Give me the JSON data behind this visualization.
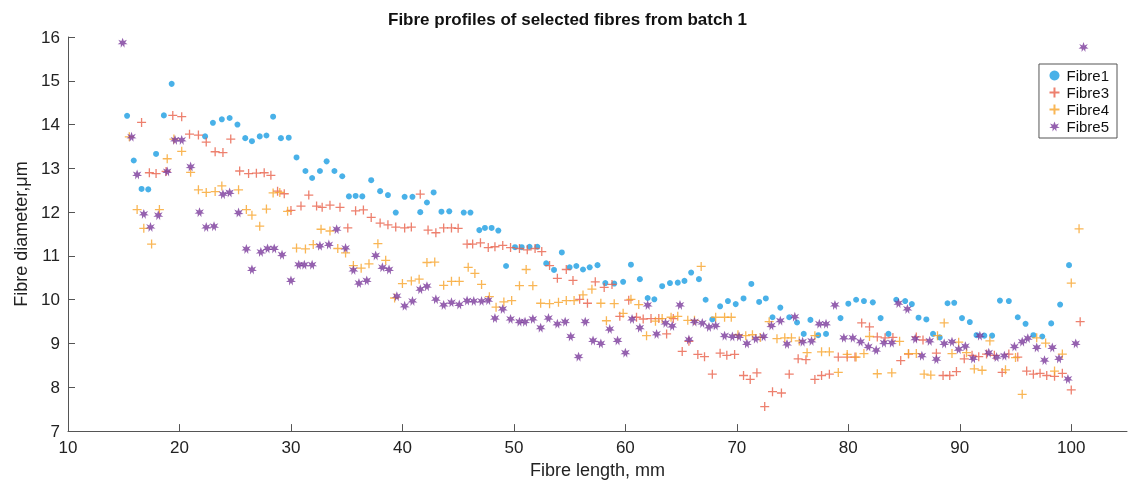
{
  "chart_data": {
    "type": "scatter",
    "title": "Fibre profiles of selected fibres from batch 1",
    "xlabel": "Fibre length, mm",
    "ylabel": "Fibre diameter,μm",
    "xlim": [
      10,
      105
    ],
    "xticks": [
      10,
      20,
      30,
      40,
      50,
      60,
      70,
      80,
      90,
      100
    ],
    "ylim": [
      7,
      16
    ],
    "yticks": [
      7,
      8,
      9,
      10,
      11,
      12,
      13,
      14,
      15,
      16
    ],
    "grid": false,
    "legend": "top right",
    "series": [
      {
        "name": "Fibre1",
        "color": "#1c9ee2",
        "marker": "circle",
        "x": [
          15.3,
          15.9,
          16.6,
          17.2,
          17.9,
          18.6,
          19.3,
          22.3,
          23.0,
          23.8,
          24.5,
          25.2,
          25.9,
          26.5,
          27.2,
          27.8,
          28.4,
          29.1,
          29.8,
          30.5,
          31.3,
          31.9,
          32.6,
          33.2,
          33.9,
          34.6,
          35.2,
          35.8,
          36.4,
          37.2,
          38.0,
          38.7,
          39.4,
          40.2,
          40.9,
          41.6,
          42.2,
          42.8,
          43.5,
          44.2,
          45.5,
          46.1,
          46.9,
          47.4,
          48.0,
          48.6,
          49.3,
          50.1,
          50.7,
          51.4,
          52.1,
          52.9,
          53.6,
          54.3,
          55.0,
          55.6,
          56.2,
          56.8,
          57.5,
          58.2,
          59.0,
          59.8,
          60.5,
          61.3,
          62.0,
          62.6,
          63.3,
          64.0,
          64.7,
          65.3,
          65.9,
          66.6,
          67.2,
          67.8,
          68.5,
          69.2,
          69.9,
          70.6,
          71.3,
          72.0,
          72.6,
          73.2,
          73.9,
          74.7,
          75.4,
          76.0,
          76.6,
          77.3,
          78.0,
          79.3,
          80.0,
          80.7,
          81.4,
          82.2,
          82.9,
          83.6,
          84.3,
          85.1,
          85.7,
          86.3,
          87.0,
          87.6,
          88.2,
          88.9,
          89.5,
          90.2,
          90.9,
          91.5,
          92.2,
          92.9,
          93.6,
          94.4,
          95.2,
          95.9,
          96.6,
          97.4,
          98.2,
          99.0,
          99.8
        ],
        "values": [
          14.2,
          13.18,
          12.53,
          12.52,
          13.33,
          14.21,
          14.93,
          13.73,
          14.04,
          14.12,
          14.15,
          14.0,
          13.69,
          13.62,
          13.73,
          13.75,
          14.18,
          13.69,
          13.7,
          13.25,
          12.94,
          12.78,
          12.94,
          13.16,
          12.94,
          12.82,
          12.36,
          12.37,
          12.36,
          12.73,
          12.48,
          12.39,
          11.99,
          12.35,
          12.35,
          12.0,
          12.22,
          12.45,
          12.01,
          12.02,
          11.99,
          11.99,
          11.59,
          11.64,
          11.64,
          11.58,
          10.77,
          11.2,
          11.2,
          11.21,
          11.21,
          10.83,
          10.68,
          11.08,
          10.74,
          10.77,
          10.69,
          10.74,
          10.79,
          10.38,
          10.37,
          10.41,
          10.8,
          10.47,
          10.04,
          10.01,
          10.31,
          10.38,
          10.39,
          10.43,
          10.62,
          10.47,
          10.0,
          9.55,
          9.85,
          9.97,
          9.9,
          10.03,
          10.36,
          9.95,
          10.03,
          9.6,
          9.82,
          9.6,
          9.48,
          9.22,
          9.54,
          9.19,
          9.22,
          9.58,
          9.91,
          10.0,
          9.97,
          9.94,
          9.58,
          9.22,
          10.0,
          9.97,
          9.9,
          9.59,
          9.55,
          9.22,
          9.14,
          9.92,
          9.93,
          9.58,
          9.49,
          9.19,
          9.18,
          9.18,
          9.98,
          9.97,
          9.6,
          9.45,
          9.19,
          9.16,
          9.46,
          9.89,
          10.79
        ]
      },
      {
        "name": "Fibre3",
        "color": "#e8604a",
        "marker": "cross",
        "x": [
          16.6,
          17.3,
          17.9,
          18.8,
          19.4,
          20.2,
          20.9,
          21.7,
          22.4,
          23.2,
          23.9,
          24.6,
          25.4,
          26.2,
          26.9,
          27.6,
          28.2,
          28.8,
          29.4,
          30.0,
          30.9,
          31.6,
          32.3,
          32.8,
          33.5,
          34.4,
          35.1,
          35.8,
          36.5,
          37.2,
          38.0,
          38.7,
          39.4,
          40.2,
          40.8,
          41.6,
          42.3,
          43.0,
          43.7,
          44.4,
          45.0,
          45.8,
          46.3,
          47.0,
          47.7,
          48.3,
          49.0,
          49.7,
          50.5,
          51.2,
          51.9,
          52.5,
          53.2,
          53.9,
          54.7,
          55.3,
          55.9,
          56.6,
          57.3,
          58.1,
          58.8,
          59.5,
          60.3,
          61.0,
          61.6,
          62.3,
          63.0,
          63.7,
          64.3,
          65.1,
          65.7,
          66.5,
          67.1,
          67.8,
          68.5,
          69.1,
          69.8,
          70.6,
          71.2,
          71.8,
          72.5,
          73.2,
          74.0,
          74.7,
          75.5,
          76.2,
          77.0,
          77.6,
          78.3,
          79.1,
          79.9,
          80.6,
          81.2,
          81.9,
          82.6,
          83.3,
          84.0,
          84.7,
          85.4,
          86.1,
          86.7,
          87.9,
          88.5,
          89.1,
          89.7,
          90.4,
          91.1,
          91.7,
          92.4,
          93.1,
          93.8,
          94.4,
          95.2,
          96.0,
          96.6,
          97.2,
          97.8,
          98.5,
          99.2,
          100.0,
          100.8
        ],
        "values": [
          14.05,
          12.9,
          12.88,
          12.93,
          14.21,
          14.18,
          13.78,
          13.76,
          13.6,
          13.38,
          13.36,
          13.67,
          12.94,
          12.88,
          12.89,
          12.9,
          12.84,
          12.48,
          12.42,
          12.04,
          12.14,
          12.39,
          12.14,
          12.11,
          12.16,
          12.11,
          11.64,
          12.03,
          12.05,
          11.88,
          11.75,
          11.71,
          11.66,
          11.64,
          11.66,
          12.41,
          11.59,
          11.53,
          11.64,
          11.64,
          11.63,
          11.27,
          11.27,
          11.3,
          11.19,
          11.21,
          11.24,
          11.19,
          11.17,
          11.14,
          11.17,
          11.1,
          10.78,
          10.49,
          10.69,
          10.44,
          10.01,
          9.92,
          10.41,
          10.28,
          10.35,
          9.62,
          9.99,
          9.6,
          9.56,
          9.57,
          9.57,
          9.22,
          9.57,
          8.82,
          9.05,
          8.75,
          8.7,
          8.3,
          8.78,
          8.73,
          8.75,
          8.27,
          8.18,
          8.33,
          7.56,
          7.9,
          7.87,
          8.3,
          8.65,
          8.63,
          8.18,
          8.27,
          8.3,
          8.69,
          8.69,
          8.69,
          9.47,
          9.38,
          9.15,
          9.13,
          9.14,
          8.61,
          8.76,
          9.15,
          9.08,
          8.78,
          8.27,
          8.27,
          8.36,
          8.65,
          8.73,
          8.7,
          8.76,
          8.73,
          8.34,
          8.76,
          8.69,
          8.37,
          8.3,
          8.32,
          8.27,
          8.25,
          8.32,
          7.94,
          9.5
        ]
      },
      {
        "name": "Fibre4",
        "color": "#f7a42b",
        "marker": "cross",
        "x": [
          15.5,
          16.2,
          16.8,
          17.5,
          18.2,
          18.9,
          19.5,
          20.2,
          21.0,
          21.7,
          22.4,
          23.2,
          23.8,
          25.3,
          26.0,
          26.5,
          27.2,
          27.8,
          28.4,
          29.0,
          29.7,
          30.5,
          31.3,
          32.0,
          32.7,
          33.5,
          34.2,
          34.9,
          35.6,
          36.3,
          37.0,
          37.8,
          38.5,
          39.3,
          40.0,
          40.8,
          41.5,
          42.2,
          42.9,
          43.7,
          44.4,
          45.1,
          45.9,
          46.5,
          47.1,
          47.8,
          48.4,
          49.1,
          49.8,
          50.5,
          51.1,
          51.7,
          52.4,
          53.2,
          54.0,
          54.7,
          55.4,
          56.2,
          57.0,
          57.8,
          58.3,
          59.0,
          59.8,
          60.5,
          61.2,
          61.9,
          62.7,
          63.3,
          64.1,
          64.7,
          65.6,
          66.2,
          66.8,
          68.1,
          68.9,
          69.5,
          70.1,
          70.8,
          71.4,
          72.1,
          72.9,
          73.6,
          74.3,
          74.9,
          75.6,
          76.3,
          77.0,
          77.6,
          78.3,
          79.1,
          79.9,
          80.7,
          81.4,
          81.9,
          82.6,
          83.9,
          84.6,
          85.4,
          86.1,
          86.8,
          87.4,
          88.0,
          88.6,
          89.3,
          89.9,
          90.6,
          91.3,
          92.0,
          92.7,
          94.1,
          95.0,
          95.6,
          96.9,
          97.7,
          98.5,
          99.2,
          100.0,
          100.7
        ],
        "values": [
          13.72,
          12.06,
          11.63,
          11.27,
          12.06,
          13.22,
          13.67,
          13.39,
          12.91,
          12.51,
          12.45,
          12.47,
          12.6,
          12.51,
          12.06,
          11.93,
          11.68,
          12.07,
          12.44,
          12.45,
          12.02,
          11.18,
          11.16,
          11.26,
          11.61,
          11.57,
          11.17,
          11.07,
          10.78,
          10.72,
          10.82,
          11.28,
          10.9,
          10.04,
          10.37,
          10.43,
          10.47,
          10.85,
          10.86,
          10.33,
          10.42,
          10.42,
          10.74,
          10.6,
          10.35,
          10.07,
          9.83,
          9.95,
          9.98,
          10.32,
          10.69,
          10.32,
          9.92,
          9.91,
          9.94,
          9.98,
          9.98,
          10.11,
          10.24,
          9.92,
          9.52,
          9.91,
          9.69,
          10.01,
          9.89,
          9.18,
          9.51,
          9.57,
          9.6,
          9.62,
          9.53,
          9.53,
          10.76,
          9.6,
          9.6,
          9.6,
          9.2,
          9.18,
          9.2,
          9.14,
          9.5,
          9.11,
          9.13,
          9.13,
          9.06,
          8.79,
          9.18,
          8.81,
          8.81,
          8.34,
          8.75,
          8.69,
          8.77,
          9.16,
          8.31,
          8.33,
          9.05,
          8.77,
          8.77,
          8.3,
          8.28,
          9.18,
          9.47,
          8.77,
          9.03,
          8.79,
          8.42,
          8.39,
          9.06,
          8.4,
          8.68,
          7.84,
          9.13,
          9.01,
          8.37,
          8.76,
          10.38,
          11.62
        ]
      },
      {
        "name": "Fibre5",
        "color": "#7b3a9b",
        "marker": "star",
        "x": [
          14.9,
          15.7,
          16.2,
          16.8,
          17.4,
          18.1,
          18.9,
          19.6,
          20.2,
          21.0,
          21.8,
          22.4,
          23.1,
          23.9,
          24.5,
          25.3,
          26.0,
          26.5,
          27.3,
          27.9,
          28.5,
          29.2,
          30.0,
          30.7,
          31.2,
          31.9,
          32.6,
          33.4,
          34.1,
          34.9,
          35.6,
          36.1,
          36.8,
          37.6,
          38.2,
          38.8,
          39.5,
          40.2,
          40.9,
          41.6,
          42.2,
          43.0,
          43.7,
          44.4,
          45.1,
          45.8,
          46.4,
          47.1,
          47.7,
          48.3,
          49.0,
          49.7,
          50.5,
          51.0,
          51.7,
          52.4,
          53.1,
          53.9,
          54.6,
          55.1,
          55.8,
          56.4,
          57.1,
          57.8,
          58.6,
          59.3,
          60.0,
          60.6,
          61.3,
          62.0,
          62.8,
          63.6,
          64.2,
          64.9,
          65.7,
          66.2,
          66.9,
          67.5,
          68.1,
          68.9,
          69.6,
          70.2,
          70.9,
          71.7,
          72.4,
          73.1,
          73.9,
          74.5,
          75.2,
          75.9,
          76.7,
          77.4,
          78.0,
          78.8,
          79.6,
          80.4,
          81.1,
          81.8,
          82.5,
          83.2,
          83.9,
          84.5,
          85.3,
          86.0,
          86.6,
          87.3,
          87.9,
          88.6,
          89.3,
          89.9,
          90.5,
          91.2,
          91.8,
          92.6,
          93.3,
          94.0,
          94.9,
          95.6,
          96.1,
          96.9,
          97.6,
          98.3,
          98.9,
          99.7,
          100.4,
          101.1
        ],
        "values": [
          15.87,
          13.72,
          12.86,
          11.96,
          11.66,
          11.93,
          12.93,
          13.65,
          13.65,
          13.04,
          12.0,
          11.66,
          11.68,
          12.41,
          12.45,
          11.99,
          11.16,
          10.69,
          11.09,
          11.17,
          11.17,
          11.03,
          10.44,
          10.8,
          10.8,
          10.8,
          11.23,
          11.26,
          11.61,
          11.18,
          10.68,
          10.38,
          10.44,
          11.01,
          10.74,
          10.69,
          10.08,
          9.86,
          9.97,
          10.24,
          10.31,
          10.01,
          9.88,
          9.94,
          9.89,
          9.98,
          9.97,
          9.97,
          9.99,
          9.58,
          9.79,
          9.56,
          9.5,
          9.5,
          9.56,
          9.36,
          9.58,
          9.45,
          9.5,
          9.16,
          8.7,
          9.5,
          9.07,
          9.0,
          9.33,
          9.07,
          8.79,
          9.56,
          9.36,
          9.88,
          9.22,
          9.47,
          9.4,
          9.88,
          9.09,
          9.5,
          9.47,
          9.38,
          9.41,
          9.18,
          9.16,
          9.16,
          9.0,
          9.11,
          9.16,
          9.41,
          9.52,
          8.99,
          9.61,
          9.04,
          9.06,
          9.45,
          9.45,
          9.88,
          9.13,
          9.13,
          9.04,
          8.93,
          8.85,
          9.02,
          9.02,
          9.92,
          9.79,
          9.11,
          8.72,
          9.06,
          8.64,
          9.0,
          9.04,
          8.87,
          8.94,
          8.66,
          9.18,
          8.79,
          8.69,
          8.72,
          8.93,
          9.04,
          9.12,
          8.91,
          8.62,
          8.91,
          8.66,
          8.19,
          9.0,
          15.77
        ]
      }
    ]
  }
}
